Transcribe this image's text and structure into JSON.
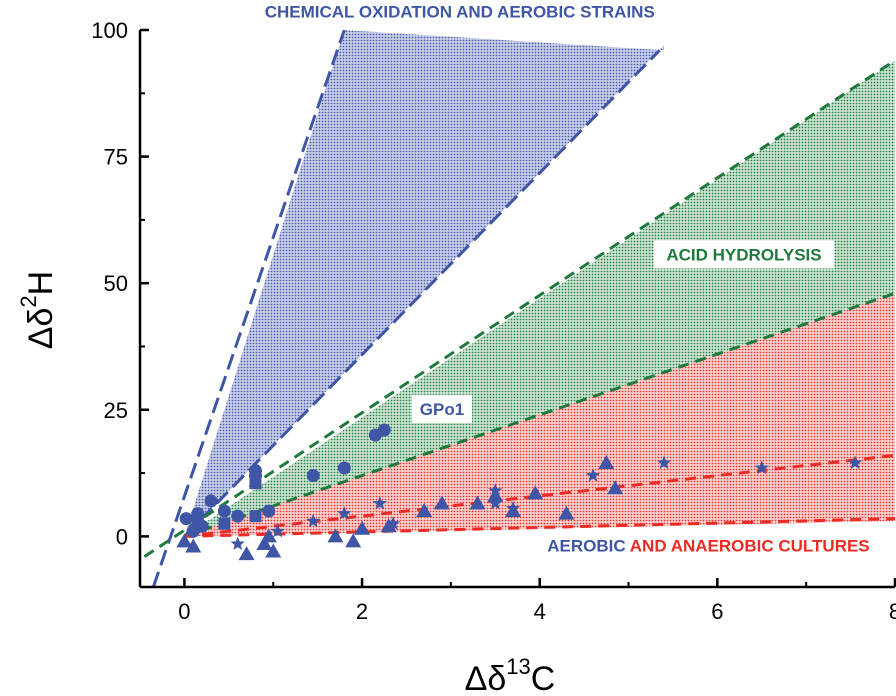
{
  "chart_data": {
    "type": "scatter",
    "title": "",
    "xlabel": {
      "base": "Δδ",
      "sup": "13",
      "rest": "C"
    },
    "ylabel": {
      "base": "Δδ",
      "sup": "2",
      "rest": "H"
    },
    "xlim": [
      -0.5,
      8
    ],
    "ylim": [
      -10,
      100
    ],
    "xticks": [
      0,
      2,
      4,
      6,
      8
    ],
    "yticks": [
      0,
      25,
      50,
      75,
      100
    ],
    "grid": false,
    "colors": {
      "blue": "#3f56a6",
      "green": "#1e7a3c",
      "red": "#ec2b24",
      "blue_fill": "#8c98cf",
      "green_fill": "#93c49e",
      "red_fill": "#f4a3a0"
    },
    "regions": [
      {
        "name": "CHEMICAL OXIDATION AND AEROBIC STRAINS",
        "color": "blue",
        "polygon": [
          [
            0,
            0
          ],
          [
            1.8,
            100
          ],
          [
            5.4,
            96
          ],
          [
            5.4,
            97
          ]
        ]
      },
      {
        "name": "ACID HYDROLYSIS",
        "color": "green",
        "polygon": [
          [
            0,
            0
          ],
          [
            8,
            94
          ],
          [
            8,
            48
          ]
        ]
      },
      {
        "name": "AEROBIC AND ANAEROBIC CULTURES",
        "color": "red",
        "polygon": [
          [
            0,
            0
          ],
          [
            8,
            48
          ],
          [
            8,
            3
          ]
        ]
      }
    ],
    "boundary_lines": [
      {
        "color": "blue",
        "style": "long-dash",
        "points": [
          [
            -0.35,
            -10
          ],
          [
            1.8,
            100
          ]
        ]
      },
      {
        "color": "blue",
        "style": "long-dash",
        "points": [
          [
            0,
            0
          ],
          [
            5.35,
            96
          ]
        ]
      },
      {
        "color": "green",
        "style": "dash",
        "points": [
          [
            -0.45,
            -4
          ],
          [
            8,
            94
          ]
        ]
      },
      {
        "color": "green",
        "style": "dash",
        "points": [
          [
            0,
            0
          ],
          [
            8,
            48
          ]
        ]
      },
      {
        "color": "red",
        "style": "dash",
        "points": [
          [
            0,
            0
          ],
          [
            8,
            16
          ]
        ]
      },
      {
        "color": "red",
        "style": "dash",
        "points": [
          [
            0,
            0
          ],
          [
            8,
            3.5
          ]
        ]
      }
    ],
    "series": [
      {
        "marker": "circle",
        "color": "blue",
        "points": [
          [
            0.02,
            3.5
          ],
          [
            0.1,
            1
          ],
          [
            0.15,
            4.5
          ],
          [
            0.2,
            2
          ],
          [
            0.3,
            7
          ],
          [
            0.45,
            5
          ],
          [
            0.6,
            4
          ],
          [
            0.8,
            12
          ],
          [
            0.8,
            13
          ],
          [
            0.95,
            5
          ],
          [
            1.45,
            12
          ],
          [
            1.8,
            13.5
          ],
          [
            2.15,
            20
          ],
          [
            2.25,
            21
          ]
        ]
      },
      {
        "marker": "square",
        "color": "blue",
        "points": [
          [
            0.15,
            3
          ],
          [
            0.45,
            2.5
          ],
          [
            0.8,
            10.5
          ],
          [
            0.8,
            4
          ]
        ]
      },
      {
        "marker": "triangle",
        "color": "blue",
        "points": [
          [
            0,
            -1
          ],
          [
            0.1,
            -2
          ],
          [
            0.7,
            -3.5
          ],
          [
            0.9,
            -1.5
          ],
          [
            0.95,
            0
          ],
          [
            1.0,
            -3
          ],
          [
            1.7,
            0
          ],
          [
            1.9,
            -1
          ],
          [
            2.0,
            1.5
          ],
          [
            2.3,
            2
          ],
          [
            2.7,
            5
          ],
          [
            2.9,
            6.5
          ],
          [
            3.3,
            6.5
          ],
          [
            3.5,
            8
          ],
          [
            3.7,
            5
          ],
          [
            3.95,
            8.5
          ],
          [
            4.3,
            4.5
          ],
          [
            4.75,
            14.5
          ],
          [
            4.85,
            9.5
          ]
        ]
      },
      {
        "marker": "star",
        "color": "blue",
        "points": [
          [
            0.6,
            -1.5
          ],
          [
            1.05,
            1
          ],
          [
            1.45,
            3
          ],
          [
            1.8,
            4.5
          ],
          [
            2.2,
            6.5
          ],
          [
            2.35,
            2.5
          ],
          [
            3.5,
            6.5
          ],
          [
            3.5,
            9
          ],
          [
            3.7,
            5.5
          ],
          [
            4.6,
            12
          ],
          [
            5.4,
            14.5
          ],
          [
            6.5,
            13.5
          ],
          [
            7.55,
            14.5
          ]
        ]
      }
    ],
    "annotations": [
      {
        "text": "CHEMICAL OXIDATION AND AEROBIC STRAINS",
        "color": "blue",
        "x": 3.1,
        "y": 102.5
      },
      {
        "text": "ACID HYDROLYSIS",
        "color": "green",
        "x": 6.3,
        "y": 54.5
      },
      {
        "text": "GPo1",
        "color": "blue",
        "x": 2.9,
        "y": 24
      },
      {
        "parts": [
          {
            "text": "AEROBIC ",
            "color": "blue"
          },
          {
            "text": "AND ANAEROBIC CULTURES",
            "color": "red"
          }
        ],
        "x": 5.9,
        "y": -3
      }
    ]
  }
}
